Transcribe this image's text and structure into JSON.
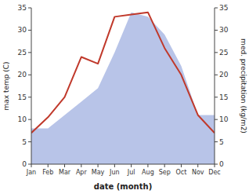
{
  "chart_data": {
    "type": "line",
    "categories": [
      "Jan",
      "Feb",
      "Mar",
      "Apr",
      "May",
      "Jun",
      "Jul",
      "Aug",
      "Sep",
      "Oct",
      "Nov",
      "Dec"
    ],
    "series": [
      {
        "type": "area",
        "axis": "y2",
        "color": "#b8c4e8",
        "values": [
          8,
          8,
          11,
          14,
          17,
          25,
          34,
          33,
          29,
          22,
          11,
          11
        ]
      },
      {
        "type": "line",
        "color": "#c0392b",
        "values": [
          7,
          10.5,
          15,
          24,
          22.5,
          33,
          33.5,
          34,
          26,
          20,
          11,
          7
        ]
      }
    ],
    "xlabel": "date (month)",
    "ylabel": "max temp (C)",
    "y2label": "med. precipitation (kg/m2)",
    "ylim": [
      0,
      35
    ],
    "yticks": [
      0,
      5,
      10,
      15,
      20,
      25,
      30,
      35
    ],
    "y2lim": [
      0,
      35
    ],
    "y2ticks": [
      0,
      5,
      10,
      15,
      20,
      25,
      30,
      35
    ]
  }
}
